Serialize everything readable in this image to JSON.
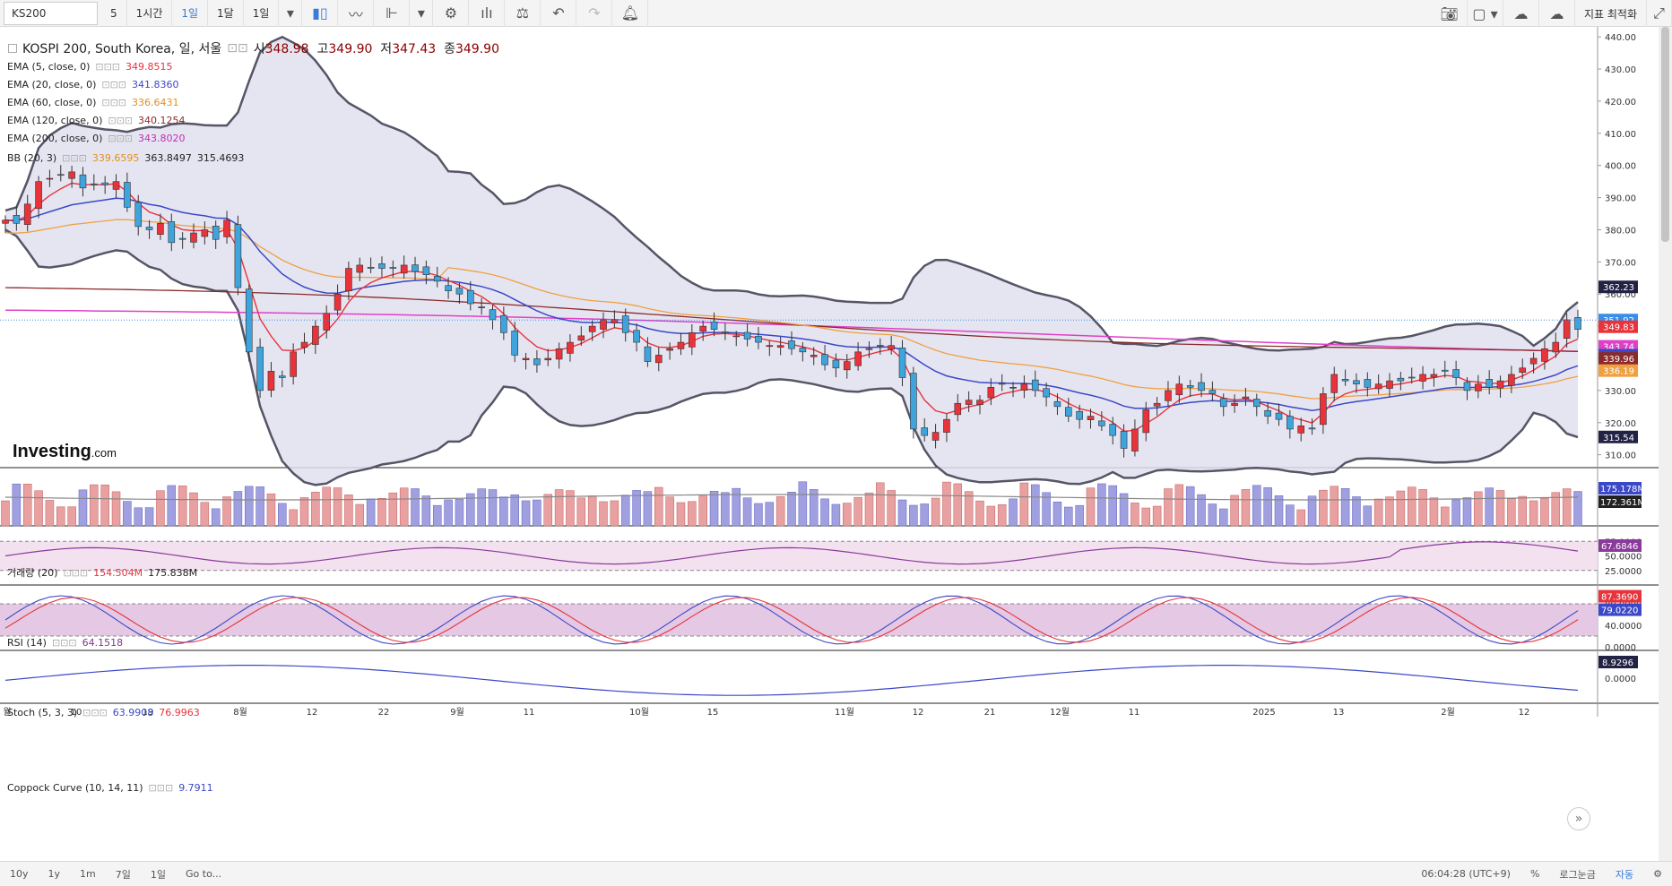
{
  "toolbar": {
    "symbol": "KS200",
    "intervals": [
      "5",
      "1시간",
      "1일",
      "1달",
      "1일"
    ],
    "active_interval": "1일",
    "right_label": "지표 최적화"
  },
  "colors": {
    "up": "#e8333b",
    "down": "#3fa3dc",
    "ema5": "#e8333b",
    "ema20": "#3b48c8",
    "ema60": "#f0a040",
    "ema120": "#8b2a2a",
    "ema200": "#e040c8",
    "bb": "#555566",
    "bb_fill": "#e0e0ef"
  },
  "main": {
    "title": "KOSPI 200, South Korea, 일, 서울",
    "ohlc": {
      "o_label": "시",
      "o": "348.98",
      "h_label": "고",
      "h": "349.90",
      "l_label": "저",
      "l": "347.43",
      "c_label": "종",
      "c": "349.90"
    },
    "legend": [
      {
        "label": "EMA (5, close, 0)",
        "value": "349.8515",
        "color": "#e8333b"
      },
      {
        "label": "EMA (20, close, 0)",
        "value": "341.8360",
        "color": "#3b48c8"
      },
      {
        "label": "EMA (60, close, 0)",
        "value": "336.6431",
        "color": "#e09020"
      },
      {
        "label": "EMA (120, close, 0)",
        "value": "340.1254",
        "color": "#8b2a2a"
      },
      {
        "label": "EMA (200, close, 0)",
        "value": "343.8020",
        "color": "#c030b0"
      }
    ],
    "bb_legend": {
      "label": "BB (20, 3)",
      "v1": "339.6595",
      "v2": "363.8497",
      "v3": "315.4693"
    },
    "logo": "Investing",
    "logo_suffix": ".com",
    "y_ticks": [
      "440.00",
      "430.00",
      "420.00",
      "410.00",
      "400.00",
      "390.00",
      "380.00",
      "370.00",
      "360.00",
      "350.00",
      "340.00",
      "330.00",
      "320.00",
      "310.00"
    ],
    "price_tags": [
      {
        "text": "362.23",
        "value": 362.23,
        "bg": "#222244"
      },
      {
        "text": "351.92",
        "value": 351.92,
        "bg": "#3a8ee6"
      },
      {
        "text": "349.83",
        "value": 349.83,
        "bg": "#e8333b"
      },
      {
        "text": "343.74",
        "value": 343.74,
        "bg": "#e040c8"
      },
      {
        "text": "340.99",
        "value": 340.99,
        "bg": "#3b48c8"
      },
      {
        "text": "339.96",
        "value": 339.96,
        "bg": "#8b2a2a"
      },
      {
        "text": "336.19",
        "value": 336.19,
        "bg": "#f0a040"
      },
      {
        "text": "315.54",
        "value": 315.54,
        "bg": "#222244"
      }
    ]
  },
  "volume": {
    "label": "거래량 (20)",
    "v1": "154.504M",
    "v2": "175.838M",
    "tags": [
      "175.178M",
      "172.361M"
    ]
  },
  "rsi": {
    "label": "RSI (14)",
    "value": "64.1518",
    "tag": "67.6846",
    "ticks": [
      "75.0000",
      "50.0000",
      "25.0000"
    ]
  },
  "stoch": {
    "label": "Stoch (5, 3, 3)",
    "k": "63.9908",
    "d": "76.9963",
    "tags": [
      "87.3690",
      "79.0220"
    ],
    "ticks": [
      "80.0000",
      "40.0000",
      "0.0000"
    ]
  },
  "coppock": {
    "label": "Coppock Curve (10, 14, 11)",
    "value": "9.7911",
    "tag": "8.9296",
    "tick": "0.0000"
  },
  "x_labels": [
    {
      "text": "월",
      "x": 8
    },
    {
      "text": "10",
      "x": 85
    },
    {
      "text": "19",
      "x": 165
    },
    {
      "text": "8월",
      "x": 268
    },
    {
      "text": "12",
      "x": 348
    },
    {
      "text": "22",
      "x": 428
    },
    {
      "text": "9월",
      "x": 510
    },
    {
      "text": "11",
      "x": 590
    },
    {
      "text": "10월",
      "x": 713
    },
    {
      "text": "15",
      "x": 795
    },
    {
      "text": "11월",
      "x": 942
    },
    {
      "text": "12",
      "x": 1024
    },
    {
      "text": "21",
      "x": 1104
    },
    {
      "text": "12월",
      "x": 1182
    },
    {
      "text": "11",
      "x": 1265
    },
    {
      "text": "2025",
      "x": 1410
    },
    {
      "text": "13",
      "x": 1493
    },
    {
      "text": "2월",
      "x": 1615
    },
    {
      "text": "12",
      "x": 1700
    }
  ],
  "chart_data": {
    "type": "candlestick",
    "ylim": [
      306,
      442
    ],
    "closes": [
      383,
      382,
      388,
      395,
      396,
      397,
      398,
      393,
      394,
      394,
      395,
      387,
      381,
      380,
      382,
      376,
      377,
      379,
      380,
      377,
      383,
      362,
      342,
      330,
      336,
      334,
      342,
      345,
      350,
      354,
      360,
      368,
      369,
      368,
      368,
      368,
      369,
      367,
      366,
      364,
      361,
      360,
      357,
      356,
      352,
      348,
      341,
      340,
      338,
      340,
      343,
      345,
      347,
      350,
      352,
      352,
      348,
      345,
      339,
      341,
      343,
      345,
      348,
      350,
      349,
      348,
      347,
      346,
      345,
      344,
      344,
      343,
      342,
      341,
      338,
      337,
      339,
      342,
      343,
      344,
      344,
      334,
      318,
      316,
      317,
      321,
      326,
      327,
      327,
      331,
      332,
      331,
      332,
      330,
      328,
      325,
      322,
      321,
      322,
      319,
      316,
      312,
      318,
      324,
      326,
      330,
      332,
      331,
      330,
      329,
      325,
      326,
      328,
      325,
      322,
      321,
      318,
      319,
      318,
      329,
      335,
      333,
      332,
      331,
      332,
      333,
      333,
      334,
      335,
      335,
      336,
      334,
      330,
      332,
      331,
      333,
      335,
      337,
      340,
      343,
      345,
      352,
      349
    ],
    "timeframe_buttons": [
      "10y",
      "1y",
      "1m",
      "7일",
      "1일",
      "Go to..."
    ],
    "time_readout": "06:04:28 (UTC+9)",
    "bottom_right": [
      "%",
      "로그눈금",
      "자동"
    ]
  },
  "bottom": {
    "buttons": [
      "10y",
      "1y",
      "1m",
      "7일",
      "1일",
      "Go to..."
    ],
    "time": "06:04:28 (UTC+9)",
    "pct": "%",
    "log": "로그눈금",
    "auto": "자동"
  }
}
